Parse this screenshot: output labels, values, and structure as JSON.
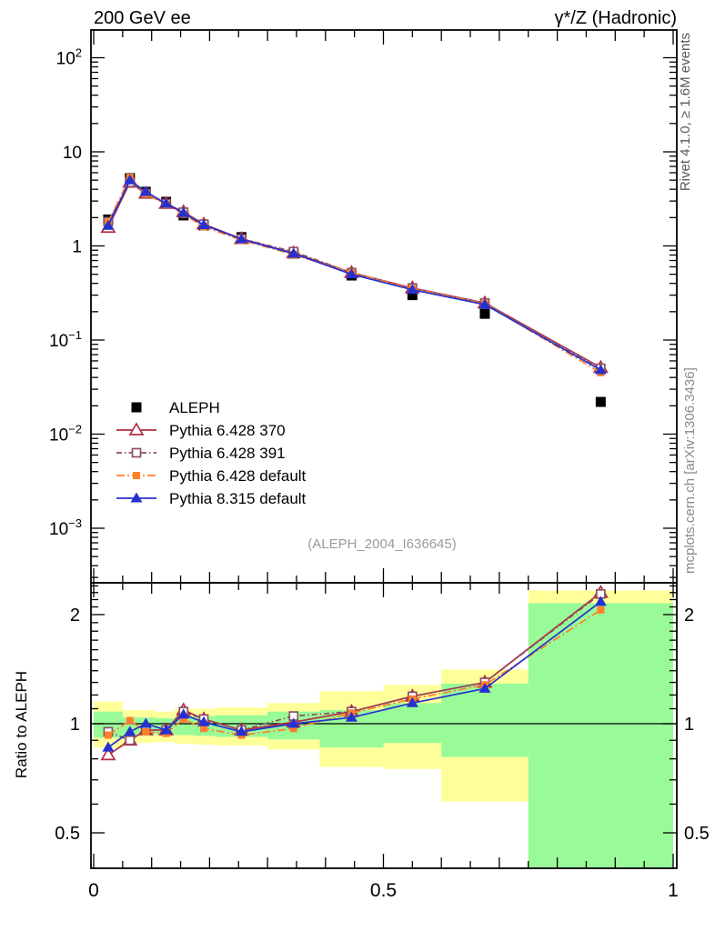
{
  "header": {
    "title_left": "200 GeV ee",
    "title_right": "γ*/Z (Hadronic)"
  },
  "side_notes": {
    "rivet": "Rivet 4.1.0, ≥ 1.6M events",
    "mcplots": "mcplots.cern.ch [arXiv:1306.3436]"
  },
  "watermark": "(ALEPH_2004_I636645)",
  "colors": {
    "aleph": "#000000",
    "pythia6_370": "#b22d42",
    "pythia6_391": "#8e4f63",
    "pythia6_default": "#ff7f2b",
    "pythia8_default": "#2531cf",
    "band_outer": "#ffff9a",
    "band_inner": "#98fb98",
    "watermark_gray": "#9b9b9b",
    "rivet_gray": "#59595b",
    "mcplots_gray": "#898989"
  },
  "legend": {
    "items": [
      {
        "label": "ALEPH",
        "series": "ALEPH"
      },
      {
        "label": "Pythia 6.428 370",
        "series": "Pythia 6.428 370"
      },
      {
        "label": "Pythia 6.428 391",
        "series": "Pythia 6.428 391"
      },
      {
        "label": "Pythia 6.428 default",
        "series": "Pythia 6.428 default"
      },
      {
        "label": "Pythia 8.315 default",
        "series": "Pythia 8.315 default"
      }
    ]
  },
  "chart_data": [
    {
      "type": "line",
      "panel": "main",
      "title": "200 GeV ee",
      "xlabel": "",
      "ylabel": "",
      "xlim": [
        0,
        1
      ],
      "ylog": true,
      "ylim": [
        0.00026,
        197
      ],
      "grid": false,
      "xticks": [
        {
          "label": "0",
          "v": 0
        },
        {
          "label": "0.5",
          "v": 0.5
        },
        {
          "label": "1",
          "v": 1
        }
      ],
      "yticks": [
        {
          "label": "10",
          "exp": "2",
          "v": 100
        },
        {
          "label": "10",
          "exp": "",
          "v": 10
        },
        {
          "label": "1",
          "exp": "",
          "v": 1
        },
        {
          "label": "10",
          "exp": "−1",
          "v": 0.1
        },
        {
          "label": "10",
          "exp": "−2",
          "v": 0.01
        },
        {
          "label": "10",
          "exp": "−3",
          "v": 0.001
        }
      ],
      "x": [
        0.025,
        0.0625,
        0.09,
        0.125,
        0.155,
        0.19,
        0.255,
        0.345,
        0.445,
        0.55,
        0.675,
        0.875
      ],
      "bin_edges": [
        0,
        0.05,
        0.075,
        0.105,
        0.14,
        0.175,
        0.21,
        0.3,
        0.39,
        0.5,
        0.6,
        0.75,
        1.0
      ],
      "series": [
        {
          "name": "ALEPH",
          "color": "#000000",
          "marker": "square-filled",
          "msize": 11,
          "line": "none",
          "values": [
            1.91,
            5.25,
            3.76,
            2.94,
            2.11,
            1.65,
            1.24,
            0.83,
            0.485,
            0.3,
            0.19,
            0.022
          ]
        },
        {
          "name": "Pythia 6.428 370",
          "color": "#b22d42",
          "marker": "triangle-open",
          "msize": 12,
          "line": "solid",
          "values": [
            1.57,
            4.73,
            3.61,
            2.82,
            2.3,
            1.7,
            1.19,
            0.84,
            0.52,
            0.357,
            0.247,
            0.051
          ]
        },
        {
          "name": "Pythia 6.428 391",
          "color": "#8e4f63",
          "marker": "square-open",
          "msize": 9,
          "line": "dashdot",
          "values": [
            1.81,
            4.73,
            3.61,
            2.82,
            2.28,
            1.7,
            1.19,
            0.87,
            0.52,
            0.357,
            0.247,
            0.05
          ]
        },
        {
          "name": "Pythia 6.428 default",
          "color": "#ff7f2b",
          "marker": "square-filled",
          "msize": 8,
          "line": "dashdot",
          "values": [
            1.78,
            5.36,
            3.57,
            2.76,
            2.17,
            1.6,
            1.15,
            0.81,
            0.52,
            0.351,
            0.243,
            0.045
          ]
        },
        {
          "name": "Pythia 8.315 default",
          "color": "#2531cf",
          "marker": "triangle-filled",
          "msize": 11,
          "line": "solid",
          "values": [
            1.64,
            4.99,
            3.76,
            2.82,
            2.24,
            1.67,
            1.18,
            0.83,
            0.5,
            0.342,
            0.238,
            0.048
          ]
        }
      ]
    },
    {
      "type": "line",
      "panel": "ratio",
      "ylabel": "Ratio to ALEPH",
      "ylog": true,
      "ylim": [
        0.4,
        2.45
      ],
      "reference_line": 1.0,
      "yticks": [
        {
          "label": "2",
          "v": 2
        },
        {
          "label": "1",
          "v": 1
        },
        {
          "label": "0.5",
          "v": 0.5
        }
      ],
      "xticks": [
        {
          "label": "0",
          "v": 0
        },
        {
          "label": "0.5",
          "v": 0.5
        },
        {
          "label": "1",
          "v": 1
        }
      ],
      "x": [
        0.025,
        0.0625,
        0.09,
        0.125,
        0.155,
        0.19,
        0.255,
        0.345,
        0.445,
        0.55,
        0.675,
        0.875
      ],
      "bands": {
        "outer_color": "#ffff9a",
        "inner_color": "#98fb98",
        "bins": [
          {
            "x0": 0.0,
            "x1": 0.05,
            "outer": [
              0.86,
              1.15
            ],
            "inner": [
              0.915,
              1.08
            ]
          },
          {
            "x0": 0.05,
            "x1": 0.075,
            "outer": [
              0.885,
              1.09
            ],
            "inner": [
              0.93,
              1.04
            ]
          },
          {
            "x0": 0.075,
            "x1": 0.105,
            "outer": [
              0.885,
              1.09
            ],
            "inner": [
              0.93,
              1.04
            ]
          },
          {
            "x0": 0.105,
            "x1": 0.14,
            "outer": [
              0.89,
              1.08
            ],
            "inner": [
              0.935,
              1.035
            ]
          },
          {
            "x0": 0.14,
            "x1": 0.175,
            "outer": [
              0.88,
              1.1
            ],
            "inner": [
              0.93,
              1.045
            ]
          },
          {
            "x0": 0.175,
            "x1": 0.21,
            "outer": [
              0.875,
              1.1
            ],
            "inner": [
              0.925,
              1.05
            ]
          },
          {
            "x0": 0.21,
            "x1": 0.3,
            "outer": [
              0.87,
              1.11
            ],
            "inner": [
              0.92,
              1.055
            ]
          },
          {
            "x0": 0.3,
            "x1": 0.39,
            "outer": [
              0.85,
              1.14
            ],
            "inner": [
              0.905,
              1.08
            ]
          },
          {
            "x0": 0.39,
            "x1": 0.5,
            "outer": [
              0.76,
              1.23
            ],
            "inner": [
              0.86,
              1.09
            ]
          },
          {
            "x0": 0.5,
            "x1": 0.6,
            "outer": [
              0.75,
              1.28
            ],
            "inner": [
              0.885,
              1.14
            ]
          },
          {
            "x0": 0.6,
            "x1": 0.75,
            "outer": [
              0.61,
              1.41
            ],
            "inner": [
              0.81,
              1.29
            ]
          },
          {
            "x0": 0.75,
            "x1": 1.0,
            "outer": [
              0.38,
              2.33
            ],
            "inner": [
              0.38,
              2.15
            ]
          }
        ]
      },
      "series": [
        {
          "name": "Pythia 6.428 370",
          "color": "#b22d42",
          "marker": "triangle-open",
          "msize": 12,
          "line": "solid",
          "values": [
            0.82,
            0.9,
            0.96,
            0.96,
            1.09,
            1.03,
            0.96,
            1.01,
            1.08,
            1.19,
            1.3,
            2.3
          ]
        },
        {
          "name": "Pythia 6.428 391",
          "color": "#8e4f63",
          "marker": "square-open",
          "msize": 9,
          "line": "dashdot",
          "values": [
            0.95,
            0.9,
            0.96,
            0.96,
            1.08,
            1.03,
            0.96,
            1.05,
            1.08,
            1.19,
            1.3,
            2.28
          ]
        },
        {
          "name": "Pythia 6.428 default",
          "color": "#ff7f2b",
          "marker": "square-filled",
          "msize": 8,
          "line": "dashdot",
          "values": [
            0.93,
            1.02,
            0.95,
            0.94,
            1.03,
            0.97,
            0.93,
            0.97,
            1.07,
            1.17,
            1.28,
            2.06
          ]
        },
        {
          "name": "Pythia 8.315 default",
          "color": "#2531cf",
          "marker": "triangle-filled",
          "msize": 11,
          "line": "solid",
          "values": [
            0.86,
            0.95,
            1.0,
            0.96,
            1.06,
            1.01,
            0.95,
            1.0,
            1.04,
            1.14,
            1.25,
            2.17
          ]
        }
      ]
    }
  ]
}
